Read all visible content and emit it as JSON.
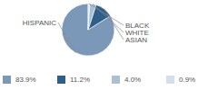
{
  "chart_data": {
    "type": "pie",
    "categories": [
      "HISPANIC",
      "ASIAN",
      "WHITE",
      "BLACK"
    ],
    "values": [
      83.9,
      11.2,
      4.0,
      0.9
    ],
    "value_labels": [
      "83.9%",
      "11.2%",
      "4.0%",
      "0.9%"
    ],
    "colors": [
      "#7b98b8",
      "#2e5f88",
      "#a9bfd4",
      "#d5dfea"
    ]
  }
}
